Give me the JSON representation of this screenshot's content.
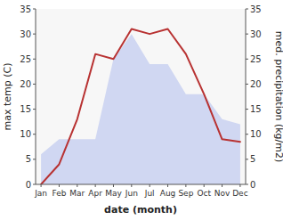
{
  "chart_data": {
    "type": "line",
    "categories": [
      "Jan",
      "Feb",
      "Mar",
      "Apr",
      "May",
      "Jun",
      "Jul",
      "Aug",
      "Sep",
      "Oct",
      "Nov",
      "Dec"
    ],
    "series": [
      {
        "type": "line",
        "color": "#b83232",
        "values": [
          0,
          4,
          13,
          26,
          25,
          31,
          30,
          31,
          26,
          18,
          9,
          8.5
        ]
      },
      {
        "type": "area",
        "color": "#c5cef0",
        "axis": "y2",
        "values": [
          6,
          9,
          9,
          9,
          25,
          30,
          24,
          24,
          18,
          18,
          13,
          12
        ]
      }
    ],
    "x_label": "date (month)",
    "y_label": "max temp (C)",
    "y2_label": "med. precipitation (kg/m2)",
    "ylim": [
      0,
      35
    ],
    "yticks": [
      0,
      5,
      10,
      15,
      20,
      25,
      30,
      35
    ],
    "y2lim": [
      0,
      35
    ],
    "y2ticks": [
      0,
      5,
      10,
      15,
      20,
      25,
      30,
      35
    ],
    "grid": false
  }
}
